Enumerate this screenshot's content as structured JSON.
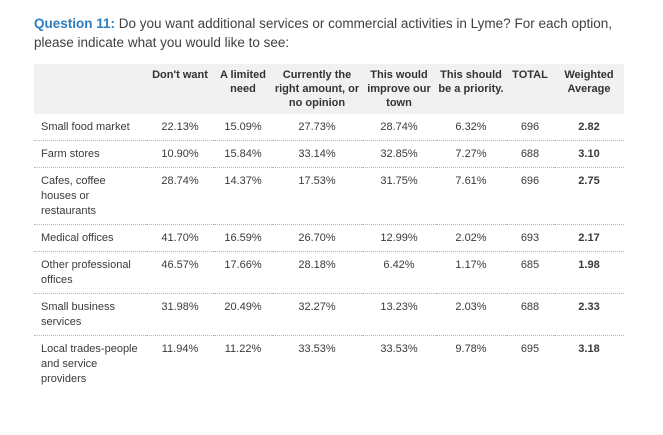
{
  "question": {
    "number": "Question 11:",
    "text": " Do you want additional services or commercial activities in Lyme? For each option, please indicate what you would like to see:"
  },
  "columns": [
    "Don't want",
    "A limited need",
    "Currently the right amount, or no opinion",
    "This would improve our town",
    "This should be a priority.",
    "TOTAL",
    "Weighted Average"
  ],
  "rows": [
    {
      "label": "Small food market",
      "values": [
        "22.13%",
        "15.09%",
        "27.73%",
        "28.74%",
        "6.32%",
        "696",
        "2.82"
      ]
    },
    {
      "label": "Farm stores",
      "values": [
        "10.90%",
        "15.84%",
        "33.14%",
        "32.85%",
        "7.27%",
        "688",
        "3.10"
      ]
    },
    {
      "label": "Cafes, coffee houses or restaurants",
      "values": [
        "28.74%",
        "14.37%",
        "17.53%",
        "31.75%",
        "7.61%",
        "696",
        "2.75"
      ]
    },
    {
      "label": "Medical offices",
      "values": [
        "41.70%",
        "16.59%",
        "26.70%",
        "12.99%",
        "2.02%",
        "693",
        "2.17"
      ]
    },
    {
      "label": "Other professional offices",
      "values": [
        "46.57%",
        "17.66%",
        "28.18%",
        "6.42%",
        "1.17%",
        "685",
        "1.98"
      ]
    },
    {
      "label": "Small business services",
      "values": [
        "31.98%",
        "20.49%",
        "32.27%",
        "13.23%",
        "2.03%",
        "688",
        "2.33"
      ]
    },
    {
      "label": "Local trades-people and service providers",
      "values": [
        "11.94%",
        "11.22%",
        "33.53%",
        "33.53%",
        "9.78%",
        "695",
        "3.18"
      ]
    }
  ]
}
